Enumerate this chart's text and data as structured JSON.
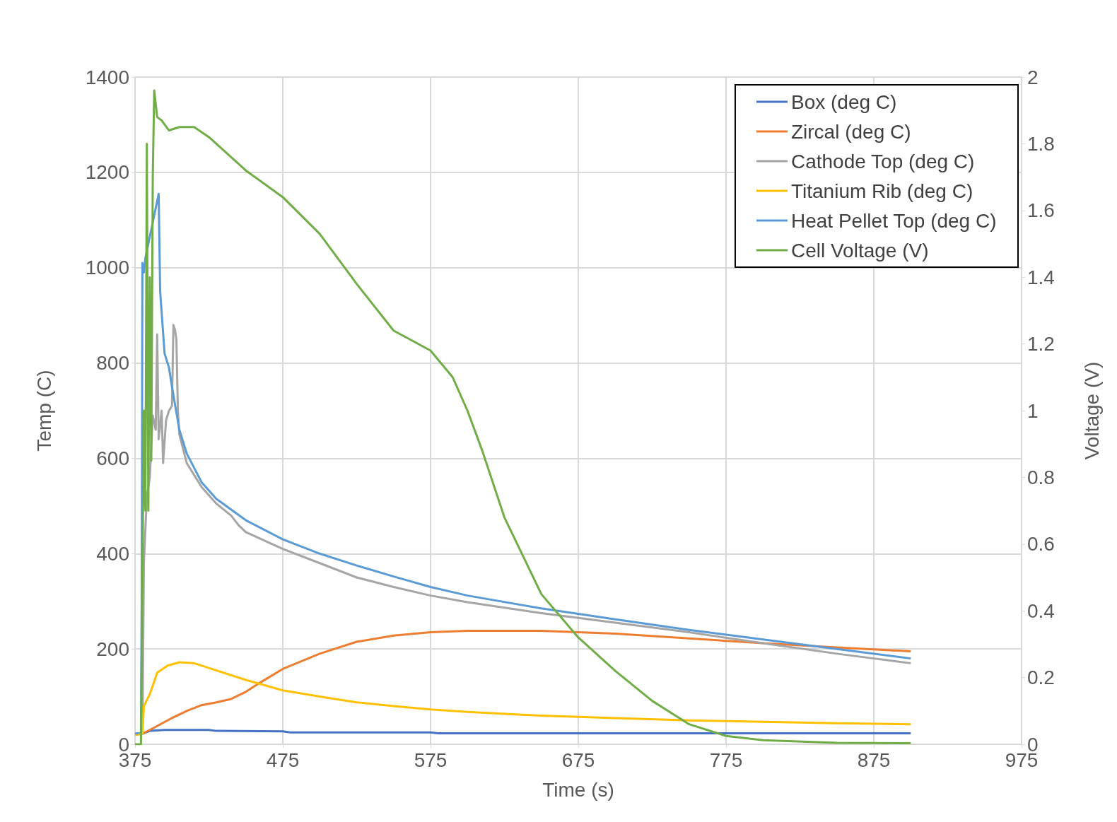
{
  "chart_data": {
    "type": "line",
    "xlabel": "Time (s)",
    "ylabel": "Temp (C)",
    "y2label": "Voltage (V)",
    "xlim": [
      375,
      975
    ],
    "xticks": [
      375,
      475,
      575,
      675,
      775,
      875,
      975
    ],
    "ylim": [
      0,
      1400
    ],
    "yticks": [
      0,
      200,
      400,
      600,
      800,
      1000,
      1200,
      1400
    ],
    "y2lim": [
      0,
      2
    ],
    "y2ticks": [
      0,
      0.2,
      0.4,
      0.6,
      0.8,
      1,
      1.2,
      1.4,
      1.6,
      1.8,
      2
    ],
    "grid": true,
    "legend": "top right",
    "marker": "none",
    "line_style": "solid",
    "series": [
      {
        "name": "Box (deg C)",
        "color": "#4472c4",
        "x": [
          375,
          380,
          385,
          395,
          425,
          430,
          475,
          480,
          575,
          580,
          900
        ],
        "values": [
          22,
          22,
          28,
          30,
          30,
          28,
          27,
          25,
          25,
          23,
          23
        ]
      },
      {
        "name": "Zircal (deg C)",
        "color": "#ed7d31",
        "x": [
          375,
          380,
          385,
          400,
          410,
          420,
          430,
          440,
          450,
          460,
          475,
          500,
          525,
          550,
          575,
          600,
          650,
          675,
          700,
          750,
          800,
          850,
          900
        ],
        "values": [
          20,
          22,
          30,
          55,
          70,
          82,
          88,
          95,
          110,
          130,
          158,
          190,
          215,
          228,
          235,
          238,
          238,
          235,
          232,
          222,
          212,
          203,
          195
        ]
      },
      {
        "name": "Cathode Top (deg C)",
        "color": "#a5a5a5",
        "x": [
          375,
          380,
          381,
          383,
          385,
          387,
          389,
          390,
          391,
          393,
          394,
          396,
          398,
          400,
          401,
          402,
          403,
          404,
          405,
          410,
          420,
          430,
          440,
          445,
          450,
          475,
          500,
          525,
          550,
          575,
          600,
          650,
          700,
          750,
          800,
          850,
          900
        ],
        "values": [
          22,
          22,
          380,
          520,
          560,
          690,
          660,
          860,
          640,
          700,
          590,
          680,
          700,
          710,
          880,
          870,
          850,
          700,
          650,
          590,
          540,
          505,
          480,
          460,
          445,
          410,
          380,
          350,
          330,
          312,
          298,
          275,
          255,
          235,
          212,
          190,
          170
        ]
      },
      {
        "name": "Titanium Rib (deg C)",
        "color": "#ffc000",
        "x": [
          375,
          380,
          381,
          385,
          390,
          397,
          405,
          415,
          425,
          450,
          475,
          500,
          525,
          550,
          575,
          600,
          650,
          700,
          750,
          800,
          850,
          900
        ],
        "values": [
          20,
          22,
          80,
          105,
          150,
          165,
          172,
          170,
          160,
          135,
          113,
          100,
          88,
          80,
          73,
          68,
          60,
          55,
          50,
          47,
          44,
          42
        ]
      },
      {
        "name": "Heat Pellet Top (deg C)",
        "color": "#5b9bd5",
        "x": [
          375,
          379,
          379.5,
          380,
          381,
          382,
          391,
          392,
          395,
          398,
          400,
          405,
          410,
          420,
          430,
          450,
          475,
          500,
          525,
          550,
          575,
          600,
          650,
          700,
          750,
          800,
          850,
          900
        ],
        "values": [
          22,
          25,
          300,
          1010,
          990,
          1020,
          1155,
          950,
          820,
          790,
          750,
          660,
          610,
          550,
          515,
          470,
          430,
          400,
          375,
          352,
          330,
          312,
          285,
          262,
          240,
          220,
          200,
          180
        ]
      },
      {
        "name": "Cell Voltage (V)",
        "color": "#70ad47",
        "axis": "y2",
        "x": [
          375,
          379,
          380,
          381,
          382,
          383,
          384,
          385,
          386,
          387,
          388,
          390,
          393,
          398,
          405,
          415,
          425,
          450,
          475,
          500,
          525,
          550,
          575,
          590,
          600,
          610,
          625,
          650,
          675,
          700,
          725,
          750,
          775,
          800,
          850,
          900
        ],
        "values": [
          0,
          0,
          0.5,
          1.0,
          0.7,
          1.8,
          0.7,
          1.4,
          0.85,
          1.7,
          1.96,
          1.88,
          1.87,
          1.84,
          1.85,
          1.85,
          1.82,
          1.72,
          1.64,
          1.53,
          1.38,
          1.24,
          1.18,
          1.1,
          1.0,
          0.88,
          0.68,
          0.45,
          0.32,
          0.22,
          0.13,
          0.06,
          0.025,
          0.012,
          0.004,
          0.003
        ]
      }
    ]
  }
}
